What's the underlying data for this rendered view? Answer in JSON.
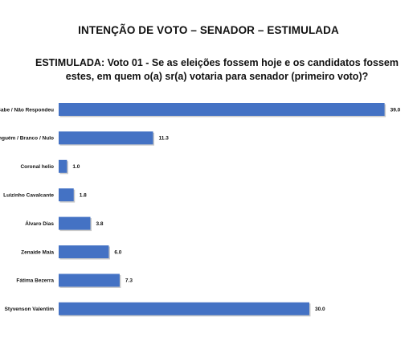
{
  "header": {
    "title": "INTENÇÃO DE VOTO – SENADOR – ESTIMULADA",
    "question_line1": "ESTIMULADA: Voto 01 - Se as eleições fossem hoje e os candidatos fossem",
    "question_line2": "estes, em quem o(a) sr(a) votaria para senador (primeiro voto)?"
  },
  "chart_data": {
    "type": "bar",
    "orientation": "horizontal",
    "categories": [
      "Não Sabe / Não Respondeu",
      "Ninguém / Branco / Nulo",
      "Coronal helio",
      "Luizinho Cavalcante",
      "Álvaro Dias",
      "Zenaide Maia",
      "Fátima Bezerra",
      "Styvenson Valentim"
    ],
    "values": [
      39.0,
      11.3,
      1.0,
      1.8,
      3.8,
      6.0,
      7.3,
      30.0
    ],
    "value_labels": [
      "39.0",
      "11.3",
      "1.0",
      "1.8",
      "3.8",
      "6.0",
      "7.3",
      "30.0"
    ],
    "xlim": [
      0,
      40
    ],
    "bar_color": "#4472C4",
    "grid": false,
    "legend": "none"
  }
}
